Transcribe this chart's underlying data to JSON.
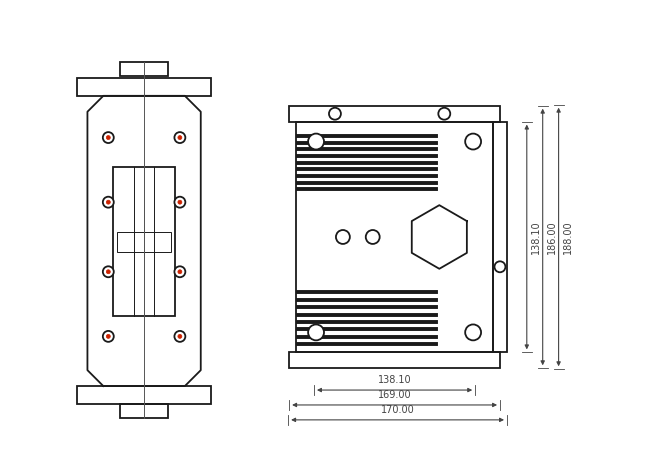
{
  "bg_color": "#ffffff",
  "line_color": "#1a1a1a",
  "dim_color": "#444444",
  "red_dot_color": "#cc2200",
  "lw_main": 1.3,
  "lw_thin": 0.7,
  "lw_fin": 2.8,
  "dim_labels_h": [
    "138.10",
    "169.00",
    "170.00"
  ],
  "dim_labels_v": [
    "138.10",
    "186.00",
    "188.00"
  ],
  "font_size": 7.0
}
